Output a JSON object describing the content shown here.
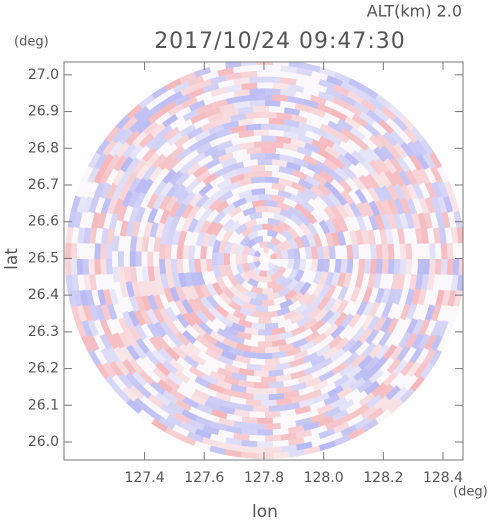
{
  "chart_data": {
    "type": "radar-ppi",
    "title": "2017/10/24 09:47:30",
    "subtitle": "ALT(km) 2.0",
    "y_unit": "(deg)",
    "x_unit": "(deg)",
    "ylabel": "lat",
    "xlabel": "lon",
    "xlim": [
      127.13,
      128.467
    ],
    "ylim": [
      25.951,
      27.035
    ],
    "xticks": [
      127.4,
      127.6,
      127.8,
      {
        "value": 128.0,
        "label": "128.0"
      },
      128.2,
      128.4
    ],
    "yticks": [
      {
        "value": 26.0,
        "label": "26.0"
      },
      26.1,
      26.2,
      26.3,
      26.4,
      26.5,
      26.6,
      26.7,
      26.8,
      26.9,
      {
        "value": 27.0,
        "label": "27.0"
      }
    ]
  }
}
